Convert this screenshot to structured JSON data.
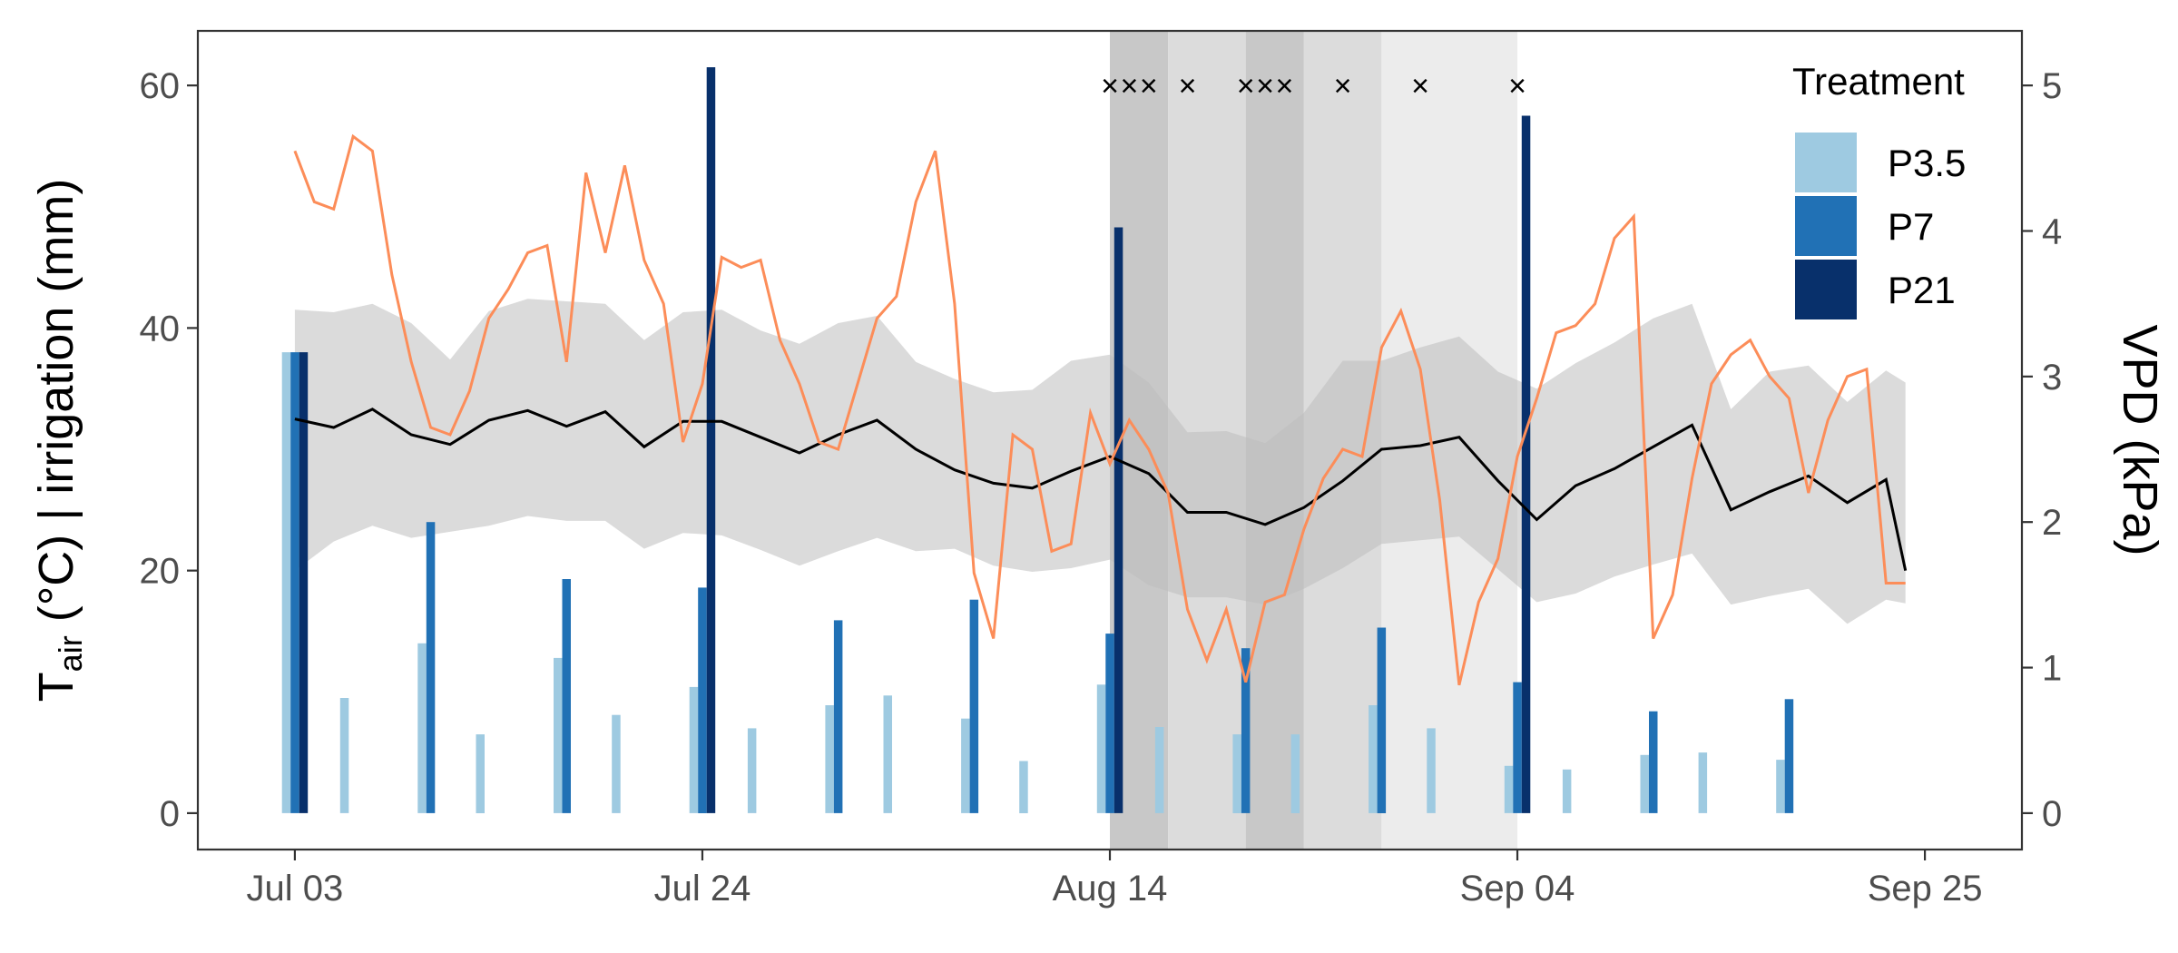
{
  "chart_data": {
    "type": "bar+line",
    "x_tick_labels": [
      "Jul 03",
      "Jul 24",
      "Aug 14",
      "Sep 04",
      "Sep 25"
    ],
    "x_ticks": [
      "2023-07-03",
      "2023-07-24",
      "2023-08-14",
      "2023-09-04",
      "2023-09-25"
    ],
    "x_range": [
      "2023-06-28",
      "2023-09-30"
    ],
    "ylabel_main": "T",
    "ylabel_sub": "air",
    "ylabel_rest": " (°C) | irrigation (mm)",
    "y2label": "VPD (kPa)",
    "y_ticks": [
      0,
      20,
      40,
      60
    ],
    "y_range": [
      -3,
      64.5
    ],
    "y2_ticks": [
      0,
      1,
      2,
      3,
      4,
      5
    ],
    "y2_max": 5,
    "grid": false,
    "legend": {
      "title": "Treatment",
      "position": "top-right",
      "entries": [
        {
          "name": "P3.5",
          "color": "#9ecae1"
        },
        {
          "name": "P7",
          "color": "#2171b5"
        },
        {
          "name": "P21",
          "color": "#08306b"
        }
      ]
    },
    "colors": {
      "tmean": "#000000",
      "range": "#d9d9d9",
      "vpd": "#fc8d59",
      "vpd_axis": "#fc8d59"
    },
    "irrigation": [
      {
        "date": "2023-07-03",
        "P3.5": 38,
        "P7": 38,
        "P21": 38
      },
      {
        "date": "2023-07-06",
        "P3.5": 9.5
      },
      {
        "date": "2023-07-10",
        "P3.5": 14,
        "P7": 24
      },
      {
        "date": "2023-07-13",
        "P3.5": 6.5
      },
      {
        "date": "2023-07-17",
        "P3.5": 12.8,
        "P7": 19.3
      },
      {
        "date": "2023-07-20",
        "P3.5": 8.1
      },
      {
        "date": "2023-07-24",
        "P3.5": 10.4,
        "P7": 18.6,
        "P21": 61.5
      },
      {
        "date": "2023-07-27",
        "P3.5": 7
      },
      {
        "date": "2023-07-31",
        "P3.5": 8.9,
        "P7": 15.9
      },
      {
        "date": "2023-08-03",
        "P3.5": 9.7
      },
      {
        "date": "2023-08-07",
        "P3.5": 7.8,
        "P7": 17.6
      },
      {
        "date": "2023-08-10",
        "P3.5": 4.3
      },
      {
        "date": "2023-08-14",
        "P3.5": 10.6,
        "P7": 14.8,
        "P21": 48.3
      },
      {
        "date": "2023-08-17",
        "P3.5": 7.1
      },
      {
        "date": "2023-08-21",
        "P3.5": 6.5,
        "P7": 13.6
      },
      {
        "date": "2023-08-24",
        "P3.5": 6.5
      },
      {
        "date": "2023-08-28",
        "P3.5": 8.9,
        "P7": 15.3
      },
      {
        "date": "2023-08-31",
        "P3.5": 7
      },
      {
        "date": "2023-09-04",
        "P3.5": 3.9,
        "P7": 10.8,
        "P21": 57.5
      },
      {
        "date": "2023-09-07",
        "P3.5": 3.6
      },
      {
        "date": "2023-09-11",
        "P3.5": 4.8,
        "P7": 8.4
      },
      {
        "date": "2023-09-14",
        "P3.5": 5
      },
      {
        "date": "2023-09-18",
        "P3.5": 4.4,
        "P7": 9.4
      }
    ],
    "temperature": {
      "dates": [
        "2023-07-03",
        "2023-07-05",
        "2023-07-07",
        "2023-07-09",
        "2023-07-11",
        "2023-07-13",
        "2023-07-15",
        "2023-07-17",
        "2023-07-19",
        "2023-07-21",
        "2023-07-23",
        "2023-07-25",
        "2023-07-27",
        "2023-07-29",
        "2023-07-31",
        "2023-08-02",
        "2023-08-04",
        "2023-08-06",
        "2023-08-08",
        "2023-08-10",
        "2023-08-12",
        "2023-08-14",
        "2023-08-16",
        "2023-08-18",
        "2023-08-20",
        "2023-08-22",
        "2023-08-24",
        "2023-08-26",
        "2023-08-28",
        "2023-08-30",
        "2023-09-01",
        "2023-09-03",
        "2023-09-05",
        "2023-09-07",
        "2023-09-09",
        "2023-09-11",
        "2023-09-13",
        "2023-09-15",
        "2023-09-17",
        "2023-09-19",
        "2023-09-21",
        "2023-09-23",
        "2023-09-24"
      ],
      "mean": [
        32.5,
        31.8,
        33.3,
        31.2,
        30.4,
        32.4,
        33.2,
        31.9,
        33.1,
        30.2,
        32.3,
        32.3,
        31.0,
        29.7,
        31.2,
        32.4,
        30.0,
        28.3,
        27.2,
        26.8,
        28.2,
        29.4,
        28.0,
        24.8,
        24.8,
        23.8,
        25.2,
        27.4,
        30.0,
        30.3,
        31.0,
        27.4,
        24.2,
        27.0,
        28.4,
        30.2,
        32.0,
        25.0,
        26.5,
        27.8,
        25.6,
        27.5,
        20.0
      ],
      "upper": [
        41.5,
        41.3,
        42.0,
        40.4,
        37.4,
        41.4,
        42.4,
        42.2,
        42.0,
        39.0,
        41.3,
        41.5,
        39.8,
        38.7,
        40.4,
        41.0,
        37.2,
        35.8,
        34.7,
        34.9,
        37.3,
        37.8,
        35.5,
        31.4,
        31.5,
        30.5,
        33.0,
        37.3,
        37.3,
        38.4,
        39.3,
        36.4,
        35.0,
        37.1,
        38.8,
        40.8,
        42.0,
        33.3,
        36.4,
        36.9,
        33.9,
        36.5,
        35.5
      ],
      "lower": [
        20.0,
        22.4,
        23.7,
        22.7,
        23.2,
        23.7,
        24.5,
        24.1,
        24.1,
        21.8,
        23.1,
        22.9,
        21.7,
        20.4,
        21.6,
        22.7,
        21.6,
        21.8,
        20.4,
        19.9,
        20.2,
        20.9,
        18.8,
        17.8,
        17.8,
        17.2,
        18.5,
        20.2,
        22.2,
        22.5,
        22.8,
        20.1,
        17.4,
        18.1,
        19.5,
        20.5,
        21.4,
        17.2,
        17.9,
        18.5,
        15.6,
        17.6,
        17.3
      ]
    },
    "vpd": {
      "dates": [
        "2023-07-03",
        "2023-07-04",
        "2023-07-05",
        "2023-07-06",
        "2023-07-07",
        "2023-07-08",
        "2023-07-09",
        "2023-07-10",
        "2023-07-11",
        "2023-07-12",
        "2023-07-13",
        "2023-07-14",
        "2023-07-15",
        "2023-07-16",
        "2023-07-17",
        "2023-07-18",
        "2023-07-19",
        "2023-07-20",
        "2023-07-21",
        "2023-07-22",
        "2023-07-23",
        "2023-07-24",
        "2023-07-25",
        "2023-07-26",
        "2023-07-27",
        "2023-07-28",
        "2023-07-29",
        "2023-07-30",
        "2023-07-31",
        "2023-08-01",
        "2023-08-02",
        "2023-08-03",
        "2023-08-04",
        "2023-08-05",
        "2023-08-06",
        "2023-08-07",
        "2023-08-08",
        "2023-08-09",
        "2023-08-10",
        "2023-08-11",
        "2023-08-12",
        "2023-08-13",
        "2023-08-14",
        "2023-08-15",
        "2023-08-16",
        "2023-08-17",
        "2023-08-18",
        "2023-08-19",
        "2023-08-20",
        "2023-08-21",
        "2023-08-22",
        "2023-08-23",
        "2023-08-24",
        "2023-08-25",
        "2023-08-26",
        "2023-08-27",
        "2023-08-28",
        "2023-08-29",
        "2023-08-30",
        "2023-08-31",
        "2023-09-01",
        "2023-09-02",
        "2023-09-03",
        "2023-09-04",
        "2023-09-05",
        "2023-09-06",
        "2023-09-07",
        "2023-09-08",
        "2023-09-09",
        "2023-09-10",
        "2023-09-11",
        "2023-09-12",
        "2023-09-13",
        "2023-09-14",
        "2023-09-15",
        "2023-09-16",
        "2023-09-17",
        "2023-09-18",
        "2023-09-19",
        "2023-09-20",
        "2023-09-21",
        "2023-09-22",
        "2023-09-23",
        "2023-09-24"
      ],
      "values": [
        4.55,
        4.2,
        4.15,
        4.65,
        4.55,
        3.7,
        3.1,
        2.65,
        2.6,
        2.9,
        3.4,
        3.6,
        3.85,
        3.9,
        3.1,
        4.4,
        3.85,
        4.45,
        3.8,
        3.5,
        2.55,
        2.95,
        3.82,
        3.75,
        3.8,
        3.25,
        2.95,
        2.55,
        2.5,
        2.95,
        3.4,
        3.55,
        4.2,
        4.55,
        3.5,
        1.65,
        1.2,
        2.6,
        2.5,
        1.8,
        1.85,
        2.75,
        2.4,
        2.7,
        2.5,
        2.2,
        1.4,
        1.05,
        1.4,
        0.9,
        1.45,
        1.5,
        1.95,
        2.3,
        2.5,
        2.45,
        3.2,
        3.45,
        3.05,
        2.15,
        0.88,
        1.45,
        1.75,
        2.45,
        2.85,
        3.3,
        3.35,
        3.5,
        3.95,
        4.1,
        1.2,
        1.5,
        2.3,
        2.95,
        3.15,
        3.25,
        3.0,
        2.85,
        2.2,
        2.7,
        3.0,
        3.05,
        1.58,
        1.58
      ]
    },
    "shaded_periods": [
      {
        "start": "2023-08-14",
        "end": "2023-08-17",
        "shade": "#c8c8c8"
      },
      {
        "start": "2023-08-17",
        "end": "2023-08-21",
        "shade": "#dcdcdc"
      },
      {
        "start": "2023-08-21",
        "end": "2023-08-24",
        "shade": "#c8c8c8"
      },
      {
        "start": "2023-08-24",
        "end": "2023-08-28",
        "shade": "#dcdcdc"
      },
      {
        "start": "2023-08-28",
        "end": "2023-09-04",
        "shade": "#ececec"
      }
    ],
    "markers": {
      "symbol": "×",
      "y": 60,
      "dates": [
        "2023-08-14",
        "2023-08-15",
        "2023-08-16",
        "2023-08-18",
        "2023-08-21",
        "2023-08-22",
        "2023-08-23",
        "2023-08-26",
        "2023-08-30",
        "2023-09-04"
      ]
    }
  }
}
